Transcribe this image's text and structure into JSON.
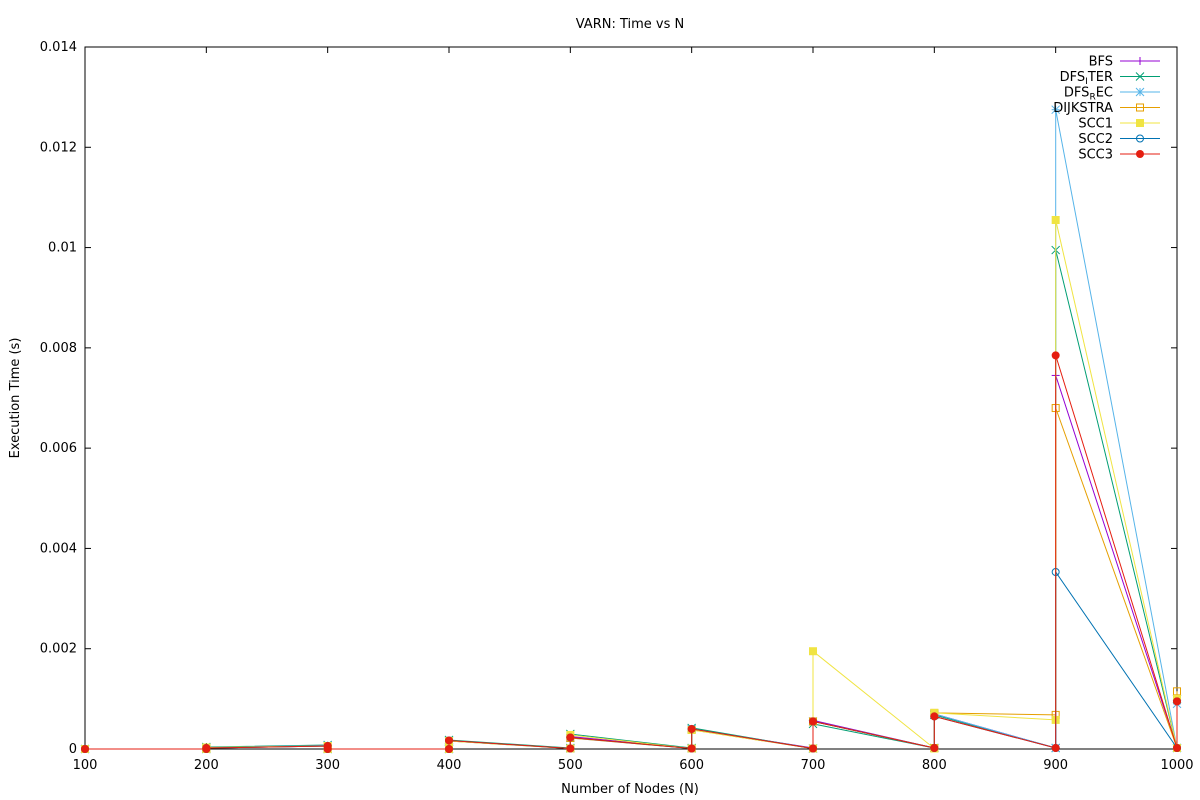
{
  "chart_data": {
    "type": "line",
    "title": "VARN: Time vs N",
    "xlabel": "Number of Nodes (N)",
    "ylabel": "Execution Time (s)",
    "xlim": [
      100,
      1000
    ],
    "ylim": [
      0,
      0.014
    ],
    "xticks": [
      100,
      200,
      300,
      400,
      500,
      600,
      700,
      800,
      900,
      1000
    ],
    "yticks": [
      0,
      0.002,
      0.004,
      0.006,
      0.008,
      0.01,
      0.012,
      0.014
    ],
    "ytick_labels": [
      "0",
      "0.002",
      "0.004",
      "0.006",
      "0.008",
      "0.01",
      "0.012",
      "0.014"
    ],
    "grid": false,
    "legend_position": "top-right",
    "series": [
      {
        "name": "BFS",
        "color": "#9400d3",
        "marker": "plus",
        "points": [
          [
            100,
            0
          ],
          [
            200,
            0
          ],
          [
            200,
            2e-05
          ],
          [
            300,
            6e-05
          ],
          [
            300,
            0
          ],
          [
            400,
            0
          ],
          [
            400,
            0.00017
          ],
          [
            500,
            1e-05
          ],
          [
            500,
            0.00025
          ],
          [
            600,
            1e-05
          ],
          [
            600,
            0.0004
          ],
          [
            700,
            2e-05
          ],
          [
            700,
            0.00057
          ],
          [
            800,
            2e-05
          ],
          [
            800,
            0.0007
          ],
          [
            900,
            2e-05
          ],
          [
            900,
            0.00745
          ],
          [
            1000,
            2e-05
          ],
          [
            1000,
            0.001
          ]
        ]
      },
      {
        "name": "DFS_ITER",
        "color": "#009e73",
        "marker": "cross",
        "points": [
          [
            100,
            0
          ],
          [
            200,
            0
          ],
          [
            200,
            4e-05
          ],
          [
            300,
            8e-05
          ],
          [
            300,
            0
          ],
          [
            400,
            0
          ],
          [
            400,
            0.00018
          ],
          [
            500,
            2e-05
          ],
          [
            500,
            0.0003
          ],
          [
            600,
            2e-05
          ],
          [
            600,
            0.00042
          ],
          [
            700,
            1e-05
          ],
          [
            700,
            0.0005
          ],
          [
            800,
            2e-05
          ],
          [
            800,
            0.00068
          ],
          [
            900,
            2e-05
          ],
          [
            900,
            0.00995
          ],
          [
            1000,
            2e-05
          ],
          [
            1000,
            0.001
          ]
        ]
      },
      {
        "name": "DFS_REC",
        "color": "#56b4e9",
        "marker": "star",
        "points": [
          [
            100,
            0
          ],
          [
            200,
            0
          ],
          [
            200,
            3e-05
          ],
          [
            300,
            7e-05
          ],
          [
            300,
            0
          ],
          [
            400,
            0
          ],
          [
            400,
            0.00016
          ],
          [
            500,
            1e-05
          ],
          [
            500,
            0.00022
          ],
          [
            600,
            1e-05
          ],
          [
            600,
            0.0004
          ],
          [
            700,
            1e-05
          ],
          [
            700,
            0.00055
          ],
          [
            800,
            2e-05
          ],
          [
            800,
            0.0007
          ],
          [
            900,
            2e-05
          ],
          [
            900,
            0.01275
          ],
          [
            1000,
            2e-05
          ],
          [
            1000,
            0.0009
          ]
        ]
      },
      {
        "name": "DIJKSTRA",
        "color": "#e69f00",
        "marker": "square-open",
        "points": [
          [
            100,
            0
          ],
          [
            200,
            0
          ],
          [
            200,
            2e-05
          ],
          [
            300,
            6e-05
          ],
          [
            300,
            0
          ],
          [
            400,
            0
          ],
          [
            400,
            0.00016
          ],
          [
            500,
            1e-05
          ],
          [
            500,
            0.00022
          ],
          [
            600,
            1e-05
          ],
          [
            600,
            0.00038
          ],
          [
            700,
            1e-05
          ],
          [
            700,
            0.00055
          ],
          [
            800,
            2e-05
          ],
          [
            800,
            0.00072
          ],
          [
            900,
            0.00068
          ],
          [
            900,
            0.0068
          ],
          [
            1000,
            2e-05
          ],
          [
            1000,
            0.00115
          ]
        ]
      },
      {
        "name": "SCC1",
        "color": "#f0e442",
        "marker": "square-filled",
        "points": [
          [
            100,
            0
          ],
          [
            200,
            0
          ],
          [
            200,
            3e-05
          ],
          [
            300,
            6e-05
          ],
          [
            300,
            0
          ],
          [
            400,
            0
          ],
          [
            400,
            0.00016
          ],
          [
            500,
            1e-05
          ],
          [
            500,
            0.00028
          ],
          [
            600,
            1e-05
          ],
          [
            600,
            0.00038
          ],
          [
            700,
            1e-05
          ],
          [
            700,
            0.00195
          ],
          [
            800,
            1e-05
          ],
          [
            800,
            0.00072
          ],
          [
            900,
            0.00058
          ],
          [
            900,
            0.01055
          ],
          [
            1000,
            2e-05
          ],
          [
            1000,
            0.001
          ]
        ]
      },
      {
        "name": "SCC2",
        "color": "#0072b2",
        "marker": "circle-open",
        "points": [
          [
            100,
            0
          ],
          [
            200,
            0
          ],
          [
            200,
            2e-05
          ],
          [
            300,
            6e-05
          ],
          [
            300,
            0
          ],
          [
            400,
            0
          ],
          [
            400,
            0.00017
          ],
          [
            500,
            1e-05
          ],
          [
            500,
            0.00023
          ],
          [
            600,
            1e-05
          ],
          [
            600,
            0.0004
          ],
          [
            700,
            1e-05
          ],
          [
            700,
            0.00055
          ],
          [
            800,
            2e-05
          ],
          [
            800,
            0.00065
          ],
          [
            900,
            2e-05
          ],
          [
            900,
            0.00353
          ],
          [
            1000,
            2e-05
          ],
          [
            1000,
            0.00095
          ]
        ]
      },
      {
        "name": "SCC3",
        "color": "#e51e10",
        "marker": "circle-filled",
        "points": [
          [
            100,
            0
          ],
          [
            200,
            0
          ],
          [
            200,
            2e-05
          ],
          [
            300,
            6e-05
          ],
          [
            300,
            0
          ],
          [
            400,
            0
          ],
          [
            400,
            0.00017
          ],
          [
            500,
            1e-05
          ],
          [
            500,
            0.00023
          ],
          [
            600,
            1e-05
          ],
          [
            600,
            0.0004
          ],
          [
            700,
            1e-05
          ],
          [
            700,
            0.00055
          ],
          [
            800,
            2e-05
          ],
          [
            800,
            0.00065
          ],
          [
            900,
            2e-05
          ],
          [
            900,
            0.00785
          ],
          [
            1000,
            2e-05
          ],
          [
            1000,
            0.00095
          ]
        ]
      }
    ]
  }
}
